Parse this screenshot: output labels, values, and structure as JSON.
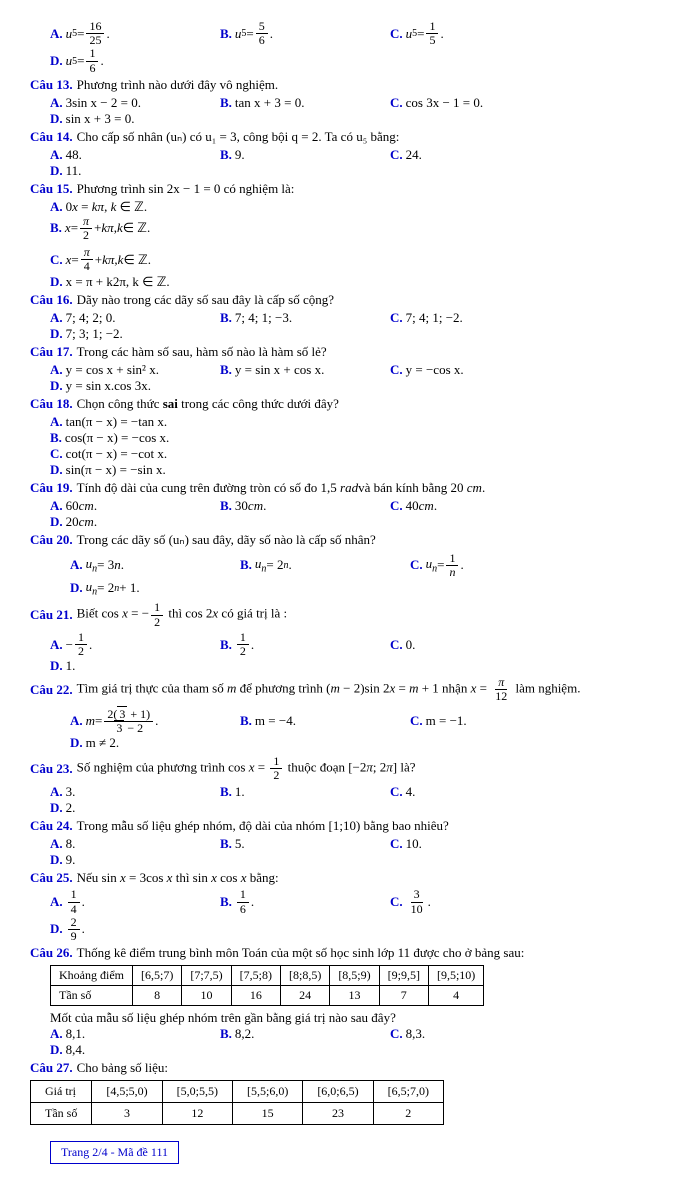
{
  "q12opts": {
    "a": "u₅ = 16/25 .",
    "b": "u₅ = 5/6 .",
    "c": "u₅ = 1/5 .",
    "d": "u₅ = 1/6 ."
  },
  "q13": {
    "label": "Câu 13.",
    "text": "Phương trình nào dưới đây vô nghiệm.",
    "a": "3sin x − 2 = 0.",
    "b": "tan x + 3 = 0.",
    "c": "cos 3x − 1 = 0.",
    "d": "sin x + 3 = 0."
  },
  "q14": {
    "label": "Câu 14.",
    "text": "Cho cấp số nhân (uₙ) có u₁ = 3, công bội q = 2. Ta có u₅ bằng:",
    "a": "48.",
    "b": "9.",
    "c": "24.",
    "d": "11."
  },
  "q15": {
    "label": "Câu 15.",
    "text": "Phương trình sin 2x − 1 = 0 có nghiệm là:",
    "a": "0x = kπ, k ∈ ℤ.",
    "b": "x = π/2 + kπ, k ∈ ℤ.",
    "c": "x = π/4 + kπ, k ∈ ℤ.",
    "d": "x = π + k2π, k ∈ ℤ."
  },
  "q16": {
    "label": "Câu 16.",
    "text": "Dãy nào trong các dãy số sau đây là cấp số cộng?",
    "a": "7; 4; 2; 0.",
    "b": "7; 4; 1; −3.",
    "c": "7; 4; 1; −2.",
    "d": "7; 3; 1; −2."
  },
  "q17": {
    "label": "Câu 17.",
    "text": "Trong các hàm số sau, hàm số nào là hàm số lẻ?",
    "a": "y = cos x + sin² x.",
    "b": "y = sin x + cos x.",
    "c": "y = −cos x.",
    "d": "y = sin x.cos 3x."
  },
  "q18": {
    "label": "Câu 18.",
    "text": "Chọn công thức sai trong các công thức dưới đây?",
    "a": "tan(π − x) = −tan x.",
    "b": "cos(π − x) = −cos x.",
    "c": "cot(π − x) = −cot x.",
    "d": "sin(π − x) = −sin x."
  },
  "q19": {
    "label": "Câu 19.",
    "text": "Tính độ dài của cung trên đường tròn có số đo 1,5 rad và bán kính bằng 20 cm.",
    "a": "60cm.",
    "b": "30cm.",
    "c": "40cm.",
    "d": "20cm."
  },
  "q20": {
    "label": "Câu 20.",
    "text": "Trong các dãy số (uₙ) sau đây, dãy số nào là cấp số nhân?",
    "a": "uₙ = 3n.",
    "b": "uₙ = 2ⁿ.",
    "c": "uₙ = 1/n.",
    "d": "uₙ = 2ⁿ + 1."
  },
  "q21": {
    "label": "Câu 21.",
    "text": "Biết cos x = −1/2 thì cos 2x có giá trị là :",
    "a": "−1/2.",
    "b": "1/2.",
    "c": "0.",
    "d": "1."
  },
  "q22": {
    "label": "Câu 22.",
    "text": "Tìm giá trị thực của tham số m để phương trình (m − 2)sin 2x = m + 1 nhận x = π/12 làm nghiệm.",
    "a_pre": "m = ",
    "b": "m = −4.",
    "c": "m = −1.",
    "d": "m ≠ 2."
  },
  "q23": {
    "label": "Câu 23.",
    "text": "Số nghiệm của phương trình cos x = 1/2 thuộc đoạn [−2π; 2π] là?",
    "a": "3.",
    "b": "1.",
    "c": "4.",
    "d": "2."
  },
  "q24": {
    "label": "Câu 24.",
    "text": "Trong mẫu số liệu ghép nhóm, độ dài của nhóm [1;10) bằng bao nhiêu?",
    "a": "8.",
    "b": "5.",
    "c": "10.",
    "d": "9."
  },
  "q25": {
    "label": "Câu 25.",
    "text": "Nếu sin x = 3cos x thì sin x cos x bằng:",
    "a": "1/4.",
    "b": "1/6.",
    "c": "3/10.",
    "d": "2/9."
  },
  "q26": {
    "label": "Câu 26.",
    "text": "Thống kê điểm trung bình môn Toán của một số học sinh lớp 11 được cho ở bảng sau:",
    "table": {
      "h": [
        "Khoảng điểm",
        "[6,5;7)",
        "[7;7,5)",
        "[7,5;8)",
        "[8;8,5)",
        "[8,5;9)",
        "[9;9,5]",
        "[9,5;10)"
      ],
      "r": [
        "Tần số",
        "8",
        "10",
        "16",
        "24",
        "13",
        "7",
        "4"
      ]
    },
    "text2": "Mốt của mẫu số liệu ghép nhóm trên gần bằng giá trị nào sau đây?",
    "a": "8,1.",
    "b": "8,2.",
    "c": "8,3.",
    "d": "8,4."
  },
  "q27": {
    "label": "Câu 27.",
    "text": "Cho bảng số liệu:",
    "table": {
      "h": [
        "Giá trị",
        "[4,5;5,0)",
        "[5,0;5,5)",
        "[5,5;6,0)",
        "[6,0;6,5)",
        "[6,5;7,0)"
      ],
      "r": [
        "Tần số",
        "3",
        "12",
        "15",
        "23",
        "2"
      ]
    }
  },
  "footer": "Trang 2/4 - Mã đề 111",
  "labels": {
    "A": "A.",
    "B": "B.",
    "C": "C.",
    "D": "D."
  }
}
